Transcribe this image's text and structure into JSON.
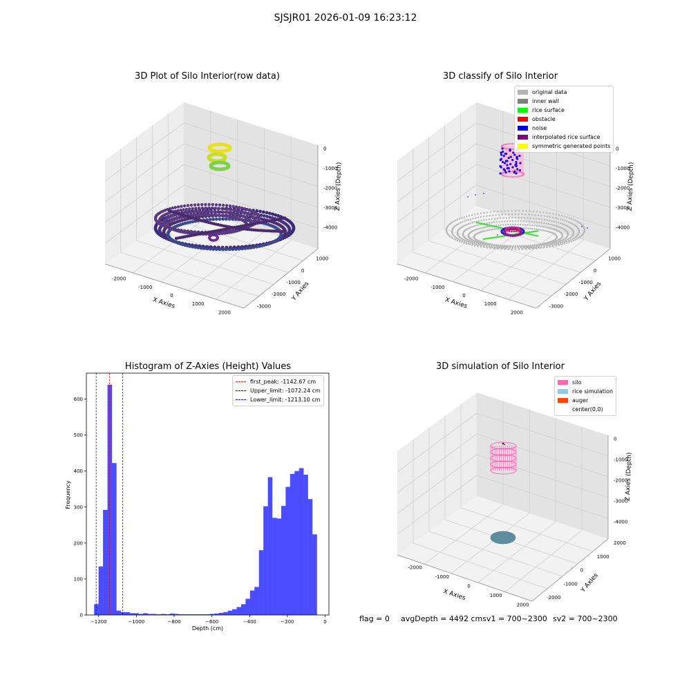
{
  "figure": {
    "suptitle": "SJSJR01 2026-01-09 16:23:12"
  },
  "colors": {
    "hist_bar": "#4b4bff",
    "first_peak": "#ff0000",
    "upper_limit": "#000080",
    "lower_limit": "#0000ff",
    "original_data": "#b3b3b3",
    "inner_wall": "#808080",
    "rice_surface": "#00ff00",
    "obstacle": "#ff0000",
    "noise": "#0000dd",
    "interpolated": "#800080",
    "symmetric": "#ffff00",
    "silo": "#ff69b4",
    "rice_simulation": "#87ceeb",
    "auger": "#ff4500"
  },
  "panels": {
    "raw": {
      "title": "3D Plot of Silo Interior(row data)",
      "xlabel": "X Axies",
      "ylabel": "Y Axies",
      "zlabel": "Z Axies (Depth)",
      "xticks": [
        "-2000",
        "-1000",
        "0",
        "1000",
        "2000"
      ],
      "yticks": [
        "1000",
        "0",
        "-1000",
        "-2000",
        "-3000"
      ],
      "zticks": [
        "0",
        "-1000",
        "-2000",
        "-3000",
        "-4000"
      ]
    },
    "classify": {
      "title": "3D classify of Silo Interior",
      "xlabel": "X Axies",
      "ylabel": "Y Axies",
      "zlabel": "Z Axies (Depth)",
      "xticks": [
        "-2000",
        "-1000",
        "0",
        "1000",
        "2000"
      ],
      "yticks": [
        "1000",
        "0",
        "-1000",
        "-2000",
        "-3000"
      ],
      "zticks": [
        "0",
        "-1000",
        "-2000",
        "-3000",
        "-4000"
      ],
      "legend": [
        {
          "label": "original data",
          "color": "#b3b3b3"
        },
        {
          "label": "inner wall",
          "color": "#808080"
        },
        {
          "label": "rice surface",
          "color": "#00ff00"
        },
        {
          "label": "obstacle",
          "color": "#ff0000"
        },
        {
          "label": "noise",
          "color": "#0000dd"
        },
        {
          "label": "interpolated rice surface",
          "color": "#800080"
        },
        {
          "label": "symmetric generated points",
          "color": "#ffff00"
        }
      ]
    },
    "simulation": {
      "title": "3D simulation of Silo Interior",
      "xlabel": "X Axies",
      "ylabel": "Y Axies",
      "zlabel": "Z Axies (Depth)",
      "xticks": [
        "-2000",
        "-1000",
        "0",
        "1000",
        "2000"
      ],
      "yticks": [
        "2000",
        "1000",
        "0",
        "-1000",
        "-2000"
      ],
      "zticks": [
        "0",
        "-1000",
        "-2000",
        "-3000",
        "-4000"
      ],
      "legend": [
        {
          "label": "silo",
          "color": "#ff69b4"
        },
        {
          "label": "rice simulation",
          "color": "#87ceeb"
        },
        {
          "label": "auger",
          "color": "#ff4500"
        },
        {
          "label": "center(0,0)",
          "color": ""
        }
      ]
    }
  },
  "footer": {
    "flag": "flag = 0",
    "avg": "avgDepth = 4492 cmsv1 = 700~2300",
    "sv2": "sv2 = 700~2300"
  },
  "chart_data": [
    {
      "type": "bar",
      "title": "Histogram of Z-Axies (Height) Values",
      "xlabel": "Depth (cm)",
      "ylabel": "Frequency",
      "xlim": [
        -1265,
        20
      ],
      "ylim": [
        0,
        672
      ],
      "xticks": [
        -1200,
        -1000,
        -800,
        -600,
        -400,
        -200,
        0
      ],
      "yticks": [
        0,
        100,
        200,
        300,
        400,
        500,
        600
      ],
      "grid": false,
      "legend_placement": "top-right",
      "bin_start": -1224,
      "bin_width": 23.6,
      "values": [
        30,
        135,
        292,
        640,
        422,
        12,
        8,
        8,
        5,
        5,
        3,
        5,
        3,
        3,
        2,
        3,
        2,
        4,
        3,
        2,
        2,
        2,
        2,
        2,
        2,
        2,
        3,
        4,
        6,
        8,
        12,
        16,
        22,
        30,
        45,
        68,
        78,
        180,
        302,
        383,
        270,
        268,
        303,
        356,
        392,
        400,
        408,
        390,
        322,
        224
      ],
      "vlines": [
        {
          "label": "first_peak: -1142.67 cm",
          "x": -1142.67,
          "color": "#ff0000"
        },
        {
          "label": "Upper_limit: -1072.24 cm",
          "x": -1072.24,
          "color": "#000080"
        },
        {
          "label": "Lower_limit: -1213.10 cm",
          "x": -1213.1,
          "color": "#0000ff"
        }
      ]
    }
  ]
}
